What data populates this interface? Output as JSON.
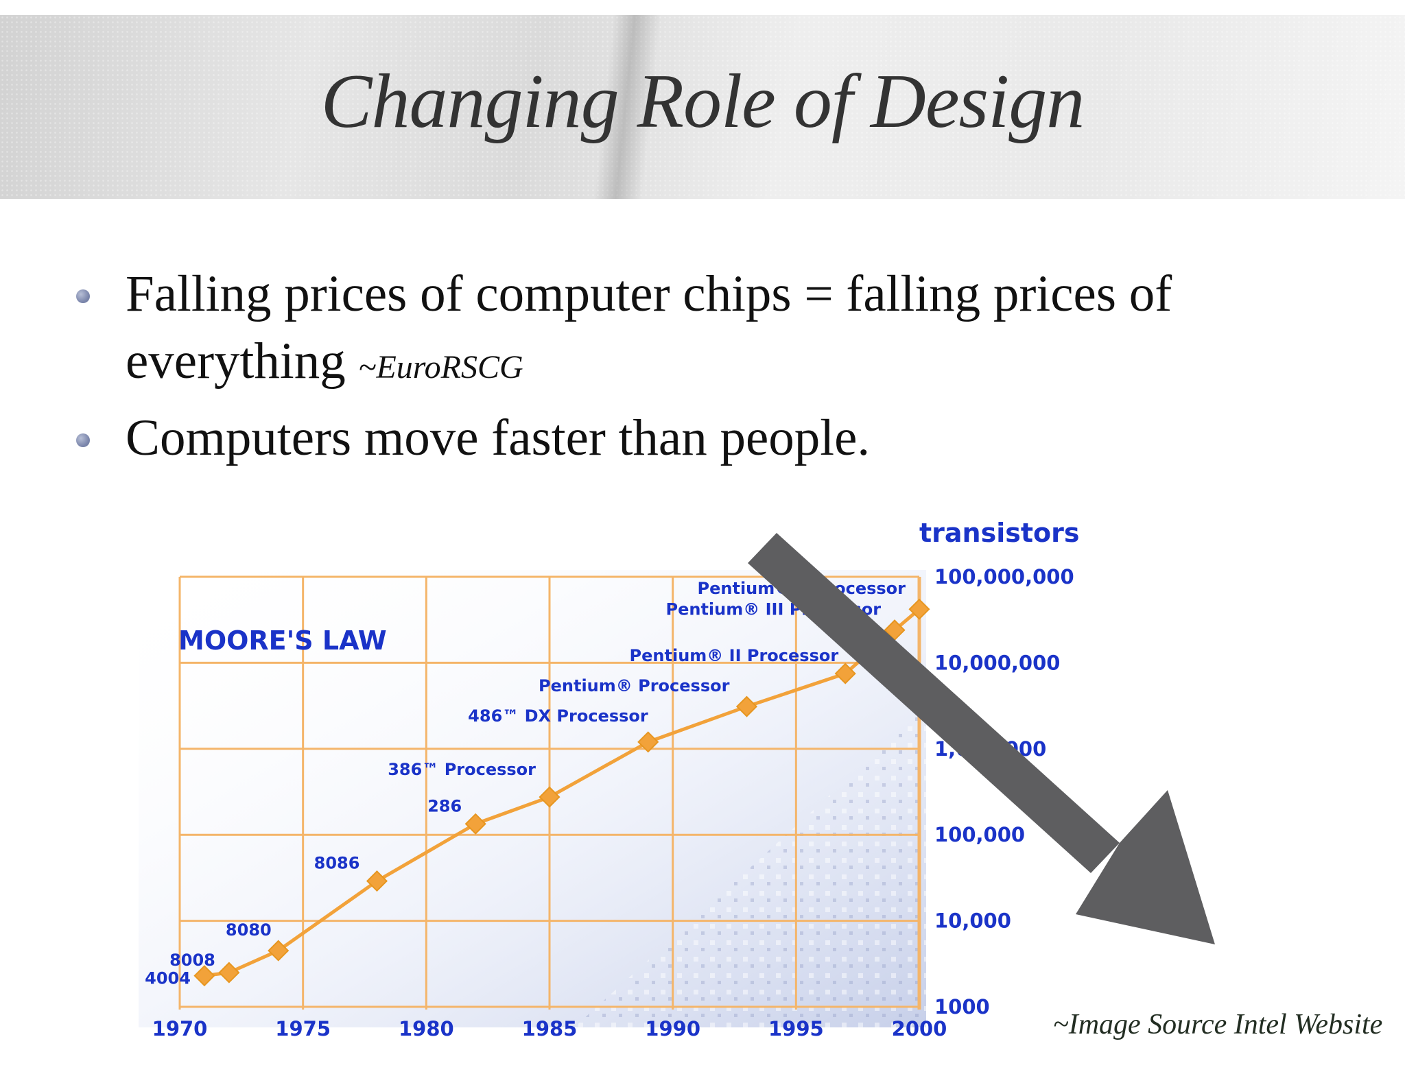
{
  "slide": {
    "title": "Changing Role of Design",
    "bullets": [
      {
        "text": "Falling prices of computer chips = falling prices of everything",
        "citation": "~EuroRSCG"
      },
      {
        "text": "Computers move faster than people.",
        "citation": ""
      }
    ],
    "image_source": "~Image Source Intel Website"
  },
  "colors": {
    "chart_blue": "#1a33c8",
    "grid_orange": "#f4b56a",
    "line_orange": "#f2a23a",
    "arrow_gray": "#5e5e60",
    "bullet": "#7d88ad"
  },
  "chart_data": {
    "type": "line",
    "title": "MOORE'S LAW",
    "ylabel": "transistors",
    "xlabel": "",
    "y_scale": "log",
    "xlim": [
      1970,
      2000
    ],
    "ylim": [
      1000,
      100000000
    ],
    "x_ticks": [
      "1970",
      "1975",
      "1980",
      "1985",
      "1990",
      "1995",
      "2000"
    ],
    "y_ticks": [
      "1000",
      "10,000",
      "100,000",
      "1,000,000",
      "10,000,000",
      "100,000,000"
    ],
    "points": [
      {
        "label": "4004",
        "x": 1971,
        "y": 2300
      },
      {
        "label": "8008",
        "x": 1972,
        "y": 2500
      },
      {
        "label": "8080",
        "x": 1974,
        "y": 4500
      },
      {
        "label": "8086",
        "x": 1978,
        "y": 29000
      },
      {
        "label": "286",
        "x": 1982,
        "y": 134000
      },
      {
        "label": "386™ Processor",
        "x": 1985,
        "y": 275000
      },
      {
        "label": "486™ DX Processor",
        "x": 1989,
        "y": 1200000
      },
      {
        "label": "Pentium® Processor",
        "x": 1993,
        "y": 3100000
      },
      {
        "label": "Pentium® II Processor",
        "x": 1997,
        "y": 7500000
      },
      {
        "label": "Pentium® III Processor",
        "x": 1999,
        "y": 24000000
      },
      {
        "label": "Pentium® 4 Processor",
        "x": 2000,
        "y": 42000000
      }
    ],
    "grid": true,
    "annotation": "large downward arrow overlaid on the chart"
  }
}
